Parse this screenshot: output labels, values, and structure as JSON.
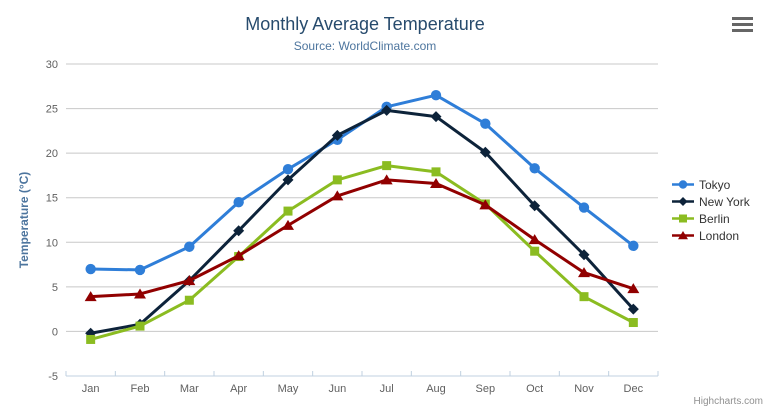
{
  "chart": {
    "title": "Monthly Average Temperature",
    "subtitle": "Source: WorldClimate.com",
    "y_axis_title": "Temperature (°C)",
    "credits": "Highcharts.com",
    "context_menu_icon": "hamburger-icon"
  },
  "chart_data": {
    "type": "line",
    "title": "Monthly Average Temperature",
    "subtitle": "Source: WorldClimate.com",
    "categories": [
      "Jan",
      "Feb",
      "Mar",
      "Apr",
      "May",
      "Jun",
      "Jul",
      "Aug",
      "Sep",
      "Oct",
      "Nov",
      "Dec"
    ],
    "xlabel": "",
    "ylabel": "Temperature (°C)",
    "ylim": [
      -5,
      30
    ],
    "yticks": [
      -5,
      0,
      5,
      10,
      15,
      20,
      25,
      30
    ],
    "grid": true,
    "legend_position": "right",
    "colors": {
      "grid_line": "#C8C8C8",
      "axis_line": "#C0D0E0",
      "tick_label": "#606060",
      "legend_text": "#333333"
    },
    "series": [
      {
        "name": "Tokyo",
        "color": "#2f7ed8",
        "marker": "circle",
        "values": [
          7.0,
          6.9,
          9.5,
          14.5,
          18.2,
          21.5,
          25.2,
          26.5,
          23.3,
          18.3,
          13.9,
          9.6
        ]
      },
      {
        "name": "New York",
        "color": "#0d233a",
        "marker": "diamond",
        "values": [
          -0.2,
          0.8,
          5.7,
          11.3,
          17.0,
          22.0,
          24.8,
          24.1,
          20.1,
          14.1,
          8.6,
          2.5
        ]
      },
      {
        "name": "Berlin",
        "color": "#8bbc21",
        "marker": "square",
        "values": [
          -0.9,
          0.6,
          3.5,
          8.4,
          13.5,
          17.0,
          18.6,
          17.9,
          14.3,
          9.0,
          3.9,
          1.0
        ]
      },
      {
        "name": "London",
        "color": "#910000",
        "marker": "triangle",
        "values": [
          3.9,
          4.2,
          5.7,
          8.5,
          11.9,
          15.2,
          17.0,
          16.6,
          14.2,
          10.3,
          6.6,
          4.8
        ]
      }
    ]
  }
}
